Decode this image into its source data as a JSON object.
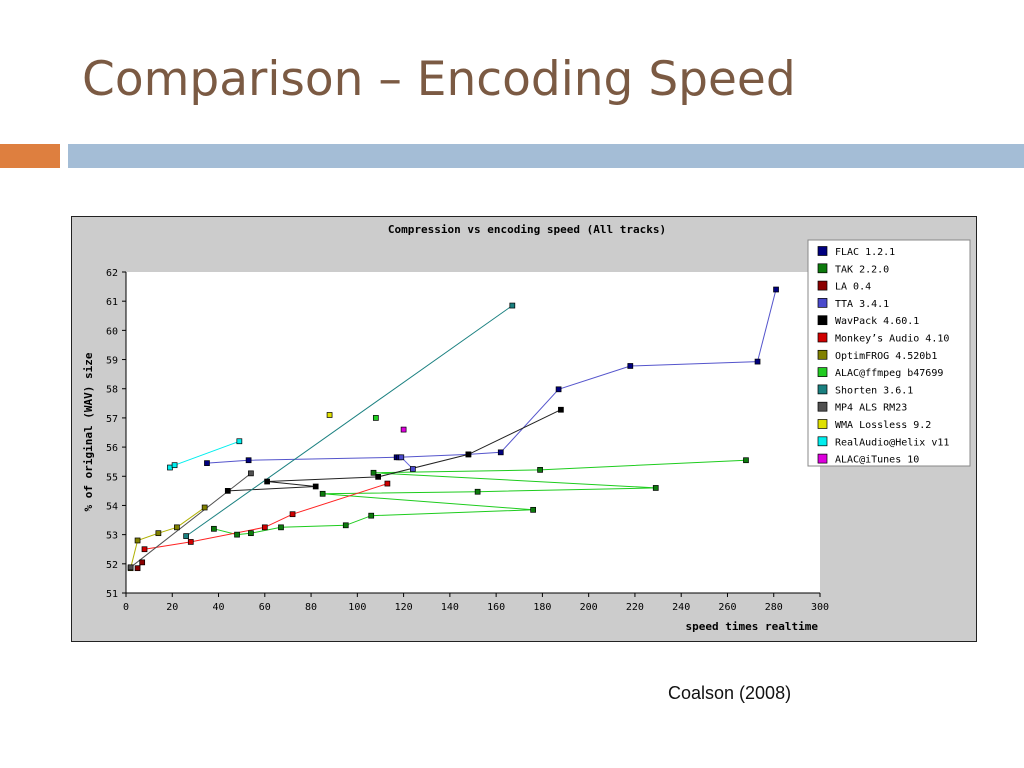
{
  "slide": {
    "title": "Comparison – Encoding Speed",
    "caption": "Coalson (2008)"
  },
  "chart_data": {
    "type": "scatter",
    "title": "Compression vs encoding speed (All tracks)",
    "xlabel": "speed times realtime",
    "ylabel": "% of original (WAV) size",
    "xlim": [
      0,
      300
    ],
    "ylim": [
      51,
      62
    ],
    "xticks": [
      0,
      20,
      40,
      60,
      80,
      100,
      120,
      140,
      160,
      180,
      200,
      220,
      240,
      260,
      280,
      300
    ],
    "yticks": [
      51,
      52,
      53,
      54,
      55,
      56,
      57,
      58,
      59,
      60,
      61,
      62
    ],
    "legend_position": "top-right",
    "grid": false,
    "series": [
      {
        "name": "FLAC 1.2.1",
        "color": "#00007f",
        "lineColor": "#5555cc",
        "points": [
          [
            35,
            55.45
          ],
          [
            53,
            55.55
          ],
          [
            117,
            55.65
          ],
          [
            118,
            55.65
          ],
          [
            148,
            55.75
          ],
          [
            162,
            55.82
          ],
          [
            187,
            57.98
          ],
          [
            218,
            58.78
          ],
          [
            273,
            58.93
          ],
          [
            281,
            61.4
          ]
        ]
      },
      {
        "name": "TAK 2.2.0",
        "color": "#0d7a0d",
        "lineColor": "#1ecc1e",
        "points": [
          [
            38,
            53.2
          ],
          [
            48,
            53.0
          ],
          [
            54,
            53.05
          ],
          [
            67,
            53.25
          ],
          [
            95,
            53.32
          ],
          [
            106,
            53.65
          ],
          [
            176,
            53.85
          ],
          [
            85,
            54.4
          ],
          [
            152,
            54.47
          ],
          [
            229,
            54.6
          ],
          [
            107,
            55.12
          ],
          [
            179,
            55.22
          ],
          [
            268,
            55.55
          ]
        ]
      },
      {
        "name": "LA 0.4",
        "color": "#8b0000",
        "lineColor": "#8b0000",
        "points": [
          [
            5,
            51.85
          ],
          [
            7,
            52.05
          ]
        ]
      },
      {
        "name": "TTA 3.4.1",
        "color": "#4a4acc",
        "lineColor": "#6666dd",
        "points": [
          [
            119,
            55.65
          ],
          [
            124,
            55.25
          ]
        ]
      },
      {
        "name": "WavPack 4.60.1",
        "color": "#000000",
        "lineColor": "#222222",
        "points": [
          [
            44,
            54.5
          ],
          [
            82,
            54.65
          ],
          [
            61,
            54.82
          ],
          [
            109,
            54.98
          ],
          [
            148,
            55.75
          ],
          [
            188,
            57.28
          ]
        ]
      },
      {
        "name": "Monkey’s Audio 4.10",
        "color": "#d00000",
        "lineColor": "#ff2222",
        "points": [
          [
            8,
            52.5
          ],
          [
            28,
            52.75
          ],
          [
            60,
            53.25
          ],
          [
            72,
            53.7
          ],
          [
            113,
            54.75
          ]
        ]
      },
      {
        "name": "OptimFROG 4.520b1",
        "color": "#808000",
        "lineColor": "#b0b000",
        "points": [
          [
            2,
            51.85
          ],
          [
            5,
            52.8
          ],
          [
            14,
            53.05
          ],
          [
            22,
            53.25
          ],
          [
            34,
            53.93
          ]
        ]
      },
      {
        "name": "ALAC@ffmpeg b47699",
        "color": "#22cc22",
        "lineColor": "#22cc22",
        "points": [
          [
            108,
            57.0
          ]
        ]
      },
      {
        "name": "Shorten 3.6.1",
        "color": "#1a8080",
        "lineColor": "#1a8080",
        "points": [
          [
            167,
            60.85
          ],
          [
            26,
            52.95
          ]
        ]
      },
      {
        "name": "MP4 ALS RM23",
        "color": "#505050",
        "lineColor": "#505050",
        "points": [
          [
            54,
            55.1
          ],
          [
            2,
            51.88
          ]
        ]
      },
      {
        "name": "WMA Lossless 9.2",
        "color": "#e0e000",
        "lineColor": "#e0e000",
        "points": [
          [
            88,
            57.1
          ]
        ]
      },
      {
        "name": "RealAudio@Helix v11",
        "color": "#00eeee",
        "lineColor": "#00eeee",
        "points": [
          [
            19,
            55.3
          ],
          [
            21,
            55.38
          ],
          [
            49,
            56.2
          ]
        ]
      },
      {
        "name": "ALAC@iTunes 10",
        "color": "#dd00dd",
        "lineColor": "#dd00dd",
        "points": [
          [
            120,
            56.6
          ]
        ]
      }
    ]
  }
}
